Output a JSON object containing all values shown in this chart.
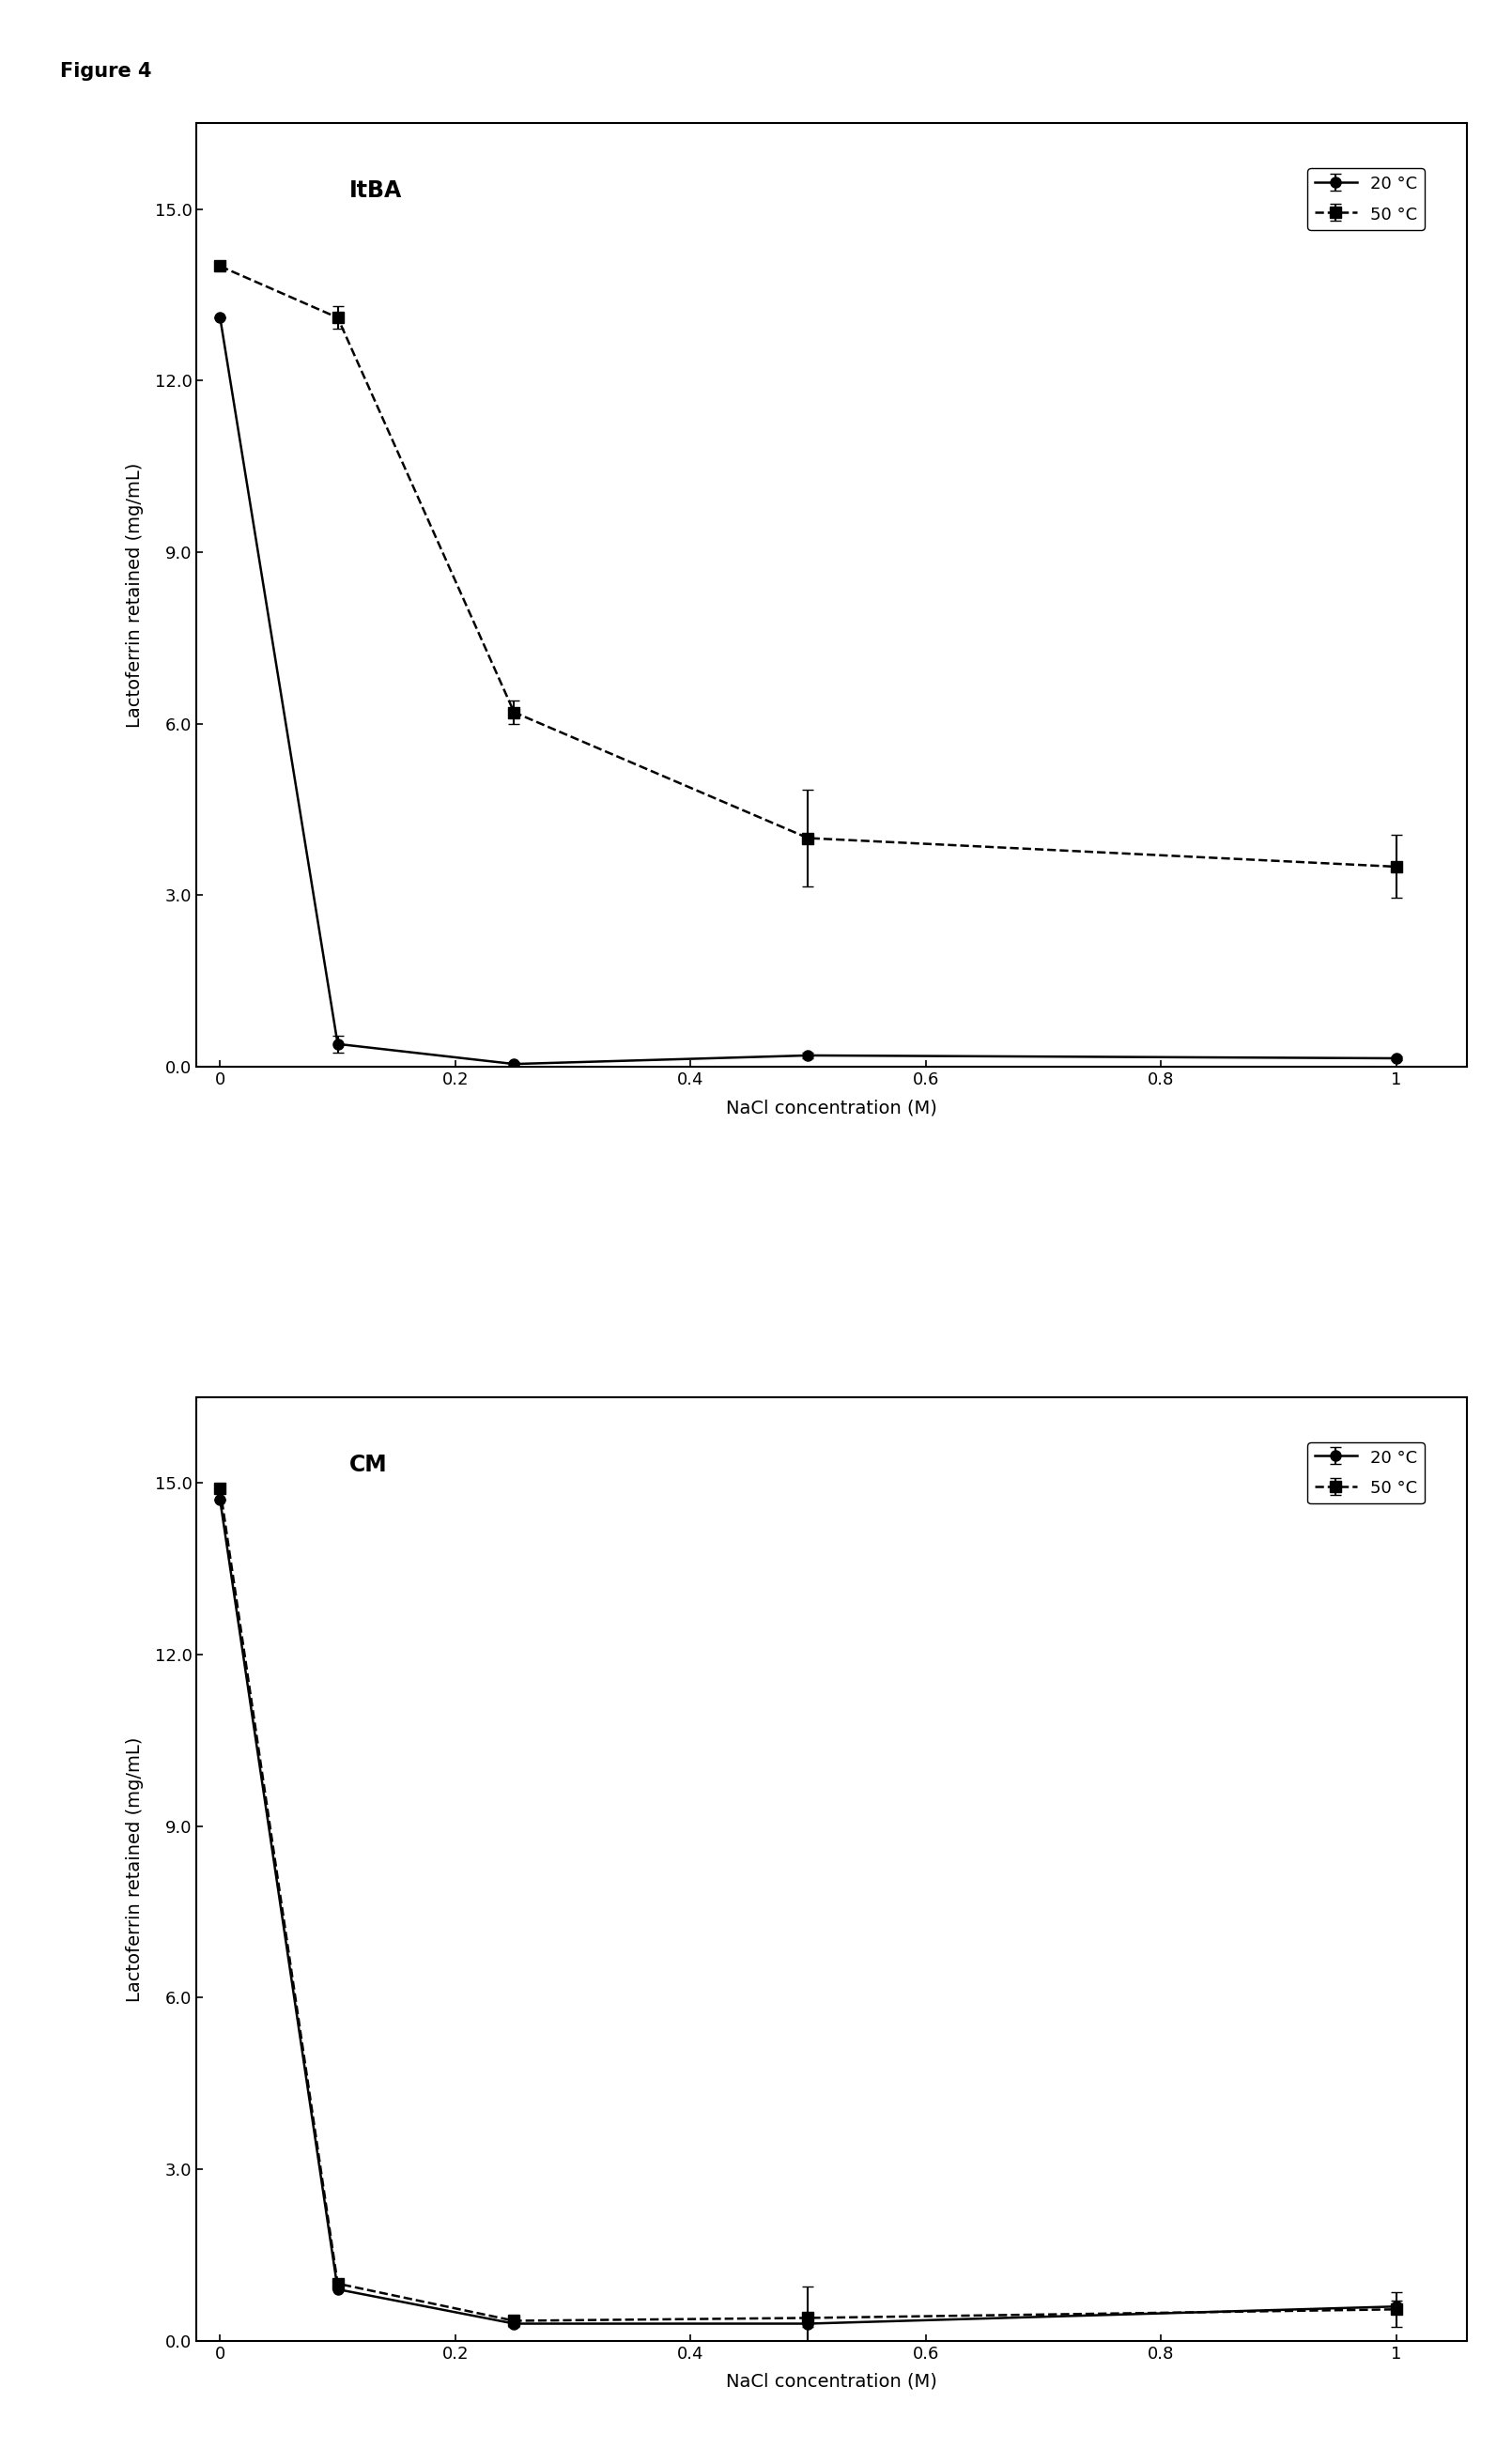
{
  "figure_label": "Figure 4",
  "panel1": {
    "label": "ItBA",
    "x": [
      0,
      0.1,
      0.25,
      0.5,
      1.0
    ],
    "line20_y": [
      13.1,
      0.4,
      0.05,
      0.2,
      0.15
    ],
    "line20_yerr": [
      0,
      0.15,
      0.03,
      0.05,
      0.04
    ],
    "line50_y": [
      14.0,
      13.1,
      6.2,
      4.0,
      3.5
    ],
    "line50_yerr": [
      0.0,
      0.2,
      0.2,
      0.85,
      0.55
    ],
    "ylabel": "Lactoferrin retained (mg/mL)",
    "xlabel": "NaCl concentration (M)",
    "ylim": [
      0.0,
      16.5
    ],
    "yticks": [
      0.0,
      3.0,
      6.0,
      9.0,
      12.0,
      15.0
    ],
    "xticks": [
      0,
      0.2,
      0.4,
      0.6,
      0.8,
      1.0
    ],
    "xlim": [
      -0.02,
      1.06
    ]
  },
  "panel2": {
    "label": "CM",
    "x": [
      0,
      0.1,
      0.25,
      0.5,
      1.0
    ],
    "line20_y": [
      14.7,
      0.9,
      0.3,
      0.3,
      0.6
    ],
    "line20_yerr": [
      0,
      0.0,
      0.05,
      0.05,
      0.1
    ],
    "line50_y": [
      14.9,
      1.0,
      0.35,
      0.4,
      0.55
    ],
    "line50_yerr": [
      0,
      0.0,
      0.05,
      0.55,
      0.3
    ],
    "ylabel": "Lactoferrin retained (mg/mL)",
    "xlabel": "NaCl concentration (M)",
    "ylim": [
      0.0,
      16.5
    ],
    "yticks": [
      0.0,
      3.0,
      6.0,
      9.0,
      12.0,
      15.0
    ],
    "xticks": [
      0,
      0.2,
      0.4,
      0.6,
      0.8,
      1.0
    ],
    "xlim": [
      -0.02,
      1.06
    ]
  },
  "legend_20": "20 °C",
  "legend_50": "50 °C",
  "line_color": "#000000",
  "fontsize_label": 14,
  "fontsize_tick": 13,
  "fontsize_legend": 13,
  "fontsize_panel_label": 17,
  "fontsize_figure_label": 15,
  "marker_circle": "o",
  "marker_square": "s",
  "markersize": 8,
  "linewidth": 1.8,
  "capsize": 4,
  "elinewidth": 1.5
}
